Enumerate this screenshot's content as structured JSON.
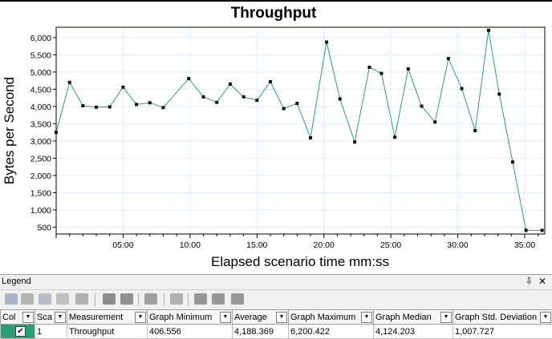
{
  "chart_data": {
    "type": "line",
    "title": "Throughput",
    "xlabel": "Elapsed scenario time mm:ss",
    "ylabel": "Bytes per Second",
    "x_tick_labels": [
      "05:00",
      "10:00",
      "15:00",
      "20:00",
      "25:00",
      "30:00",
      "35:00"
    ],
    "x_tick_values_min": [
      5,
      10,
      15,
      20,
      25,
      30,
      35
    ],
    "xlim_min": [
      0,
      36.5
    ],
    "ylim": [
      300,
      6300
    ],
    "y_ticks": [
      500,
      1000,
      1500,
      2000,
      2500,
      3000,
      3500,
      4000,
      4500,
      5000,
      5500,
      6000
    ],
    "y_tick_labels": [
      "500",
      "1,000",
      "1,500",
      "2,000",
      "2,500",
      "3,000",
      "3,500",
      "4,000",
      "4,500",
      "5,000",
      "5,500",
      "6,000"
    ],
    "grid": true,
    "line_color": "#2e9b7a",
    "series": [
      {
        "x_min": [
          0,
          1,
          2,
          3,
          4,
          5,
          6,
          7,
          8,
          9.9,
          11,
          12,
          13,
          14,
          15,
          16,
          17,
          18,
          19,
          20.2,
          21.2,
          22.3,
          23.4,
          24.3,
          25.3,
          26.3,
          27.3,
          28.3,
          29.3,
          30.3,
          31.3,
          32.3,
          33.1,
          34.1,
          35.1,
          36.3
        ],
        "y": [
          3250,
          4700,
          4020,
          3980,
          3990,
          4560,
          4060,
          4110,
          3970,
          4810,
          4280,
          4120,
          4650,
          4280,
          4180,
          4720,
          3940,
          4090,
          3090,
          5870,
          4220,
          2970,
          5140,
          4960,
          3110,
          5090,
          4010,
          3550,
          5390,
          4520,
          3300,
          6210,
          4360,
          2390,
          406.556,
          406.556
        ]
      }
    ]
  },
  "legend": {
    "title": "Legend",
    "pin_glyph": "⇩",
    "close_glyph": "✕",
    "dropdown_glyph": "▼",
    "check_glyph": "✔",
    "columns": [
      "Col",
      "Sca",
      "Measurement",
      "Graph Minimum",
      "Average",
      "Graph Maximum",
      "Graph Median",
      "Graph Std. Deviation"
    ],
    "row": {
      "scale": "1",
      "measurement": "Throughput",
      "graph_minimum": "406.556",
      "average": "4,188.369",
      "graph_maximum": "6,200.422",
      "graph_median": "4,124.203",
      "graph_std_deviation": "1,007.727"
    },
    "toolbar_icons": [
      "zoom-icon",
      "filter-icon",
      "group-icon",
      "link-icon",
      "funnel-icon",
      "graph-icon",
      "export-icon",
      "grid-icon",
      "bar-icon",
      "columns-icon",
      "arrange-icon",
      "move-icon",
      "split-icon"
    ]
  }
}
